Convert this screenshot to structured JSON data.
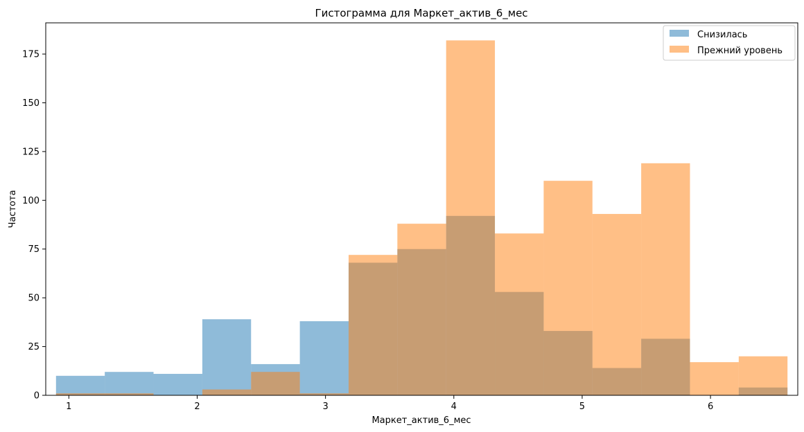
{
  "chart_data": {
    "type": "histogram",
    "title": "Гистограмма для Маркет_актив_6_мес",
    "xlabel": "Маркет_актив_6_мес",
    "ylabel": "Частота",
    "xlim": [
      0.82,
      6.68
    ],
    "ylim": [
      0,
      191
    ],
    "xticks": [
      1,
      2,
      3,
      4,
      5,
      6
    ],
    "yticks": [
      0,
      25,
      50,
      75,
      100,
      125,
      150,
      175
    ],
    "grid": false,
    "legend_position": "top-right",
    "bin_edges": [
      0.9,
      1.28,
      1.66,
      2.04,
      2.42,
      2.8,
      3.18,
      3.56,
      3.94,
      4.32,
      4.7,
      5.08,
      5.46,
      5.84,
      6.22,
      6.6
    ],
    "series": [
      {
        "name": "Снизилась",
        "color": "#1f77b4",
        "opacity": 0.5,
        "values": [
          10,
          12,
          11,
          39,
          16,
          38,
          68,
          75,
          92,
          53,
          33,
          14,
          29,
          0,
          4
        ]
      },
      {
        "name": "Прежний уровень",
        "color": "#ff7f0e",
        "opacity": 0.5,
        "values": [
          1,
          1,
          0,
          3,
          12,
          1,
          72,
          88,
          182,
          83,
          110,
          93,
          119,
          17,
          20
        ]
      }
    ]
  }
}
